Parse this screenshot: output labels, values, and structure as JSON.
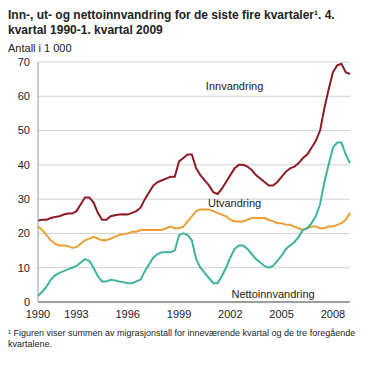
{
  "chart_data": {
    "type": "line",
    "title": "Inn-, ut- og nettoinnvandring for de siste fire kvartaler¹. 4. kvartal 1990-1. kvartal 2009",
    "y_label": "Antall i 1 000",
    "footnote": "¹ Figuren viser summen av migrasjonstall for inneværende kvartal og de tre foregående kvartalene.",
    "categories": [
      "1990",
      null,
      null,
      null,
      null,
      null,
      null,
      null,
      null,
      "1993",
      null,
      null,
      null,
      null,
      null,
      null,
      null,
      null,
      null,
      null,
      null,
      "1996",
      null,
      null,
      null,
      null,
      null,
      null,
      null,
      null,
      null,
      null,
      null,
      "1999",
      null,
      null,
      null,
      null,
      null,
      null,
      null,
      null,
      null,
      null,
      null,
      "2002",
      null,
      null,
      null,
      null,
      null,
      null,
      null,
      null,
      null,
      null,
      null,
      "2005",
      null,
      null,
      null,
      null,
      null,
      null,
      null,
      null,
      null,
      null,
      null,
      "2008",
      null,
      null,
      null,
      null
    ],
    "series": [
      {
        "name": "Innvandring",
        "color": "#8b1c24",
        "values": [
          23.8,
          24,
          24,
          24.5,
          24.8,
          25,
          25.5,
          25.8,
          25.8,
          26.5,
          28.5,
          30.5,
          30.5,
          29,
          26,
          24,
          24,
          25,
          25.3,
          25.5,
          25.6,
          25.5,
          26,
          26.5,
          27.5,
          30,
          32,
          34,
          35,
          35.5,
          36,
          36.5,
          36.5,
          41,
          42,
          43,
          43,
          39,
          37,
          35.5,
          34,
          32,
          31.5,
          33,
          35,
          37,
          39,
          40,
          40,
          39.5,
          38.5,
          37,
          36,
          35,
          34,
          34,
          35,
          36.5,
          38,
          39,
          39.5,
          40.5,
          42,
          43,
          45,
          47,
          50,
          56.5,
          62,
          67,
          69,
          69.5,
          67,
          66.5
        ]
      },
      {
        "name": "Utvandring",
        "color": "#e8a033",
        "values": [
          22,
          21,
          19.5,
          18,
          17,
          16.5,
          16.5,
          16.3,
          15.8,
          16,
          17,
          18,
          18.5,
          19,
          18.5,
          18,
          18,
          18.5,
          19,
          19.5,
          19.8,
          20,
          20.5,
          20.5,
          21,
          21,
          21,
          21,
          21,
          21,
          21.5,
          22,
          21.5,
          21.5,
          22,
          23.5,
          25,
          26.5,
          27,
          27,
          27,
          26.5,
          26,
          25.5,
          25,
          24,
          23.5,
          23.5,
          23.5,
          24,
          24.5,
          24.5,
          24.5,
          24.5,
          24,
          23.5,
          23,
          23,
          22.5,
          22.5,
          22,
          21.5,
          21,
          21.5,
          22,
          22,
          21.5,
          21.5,
          22,
          22,
          22.5,
          23,
          24,
          26
        ]
      },
      {
        "name": "Nettoinnvandring",
        "color": "#3fb39b",
        "values": [
          1.8,
          3,
          4.5,
          6.5,
          7.8,
          8.5,
          9,
          9.5,
          10,
          10.5,
          11.5,
          12.5,
          12,
          10,
          7.5,
          6,
          6,
          6.5,
          6.3,
          6,
          5.8,
          5.5,
          5.5,
          6,
          6.5,
          9,
          11,
          13,
          14,
          14.5,
          14.5,
          14.5,
          15,
          19.5,
          20,
          19.5,
          18,
          12.5,
          10,
          8.5,
          7,
          5.5,
          5.5,
          7.5,
          10,
          13,
          15.5,
          16.5,
          16.5,
          15.5,
          14,
          12.5,
          11.5,
          10.5,
          10,
          10.5,
          12,
          13.5,
          15.5,
          16.5,
          17.5,
          19,
          21,
          21.5,
          23,
          25,
          28.5,
          35,
          40,
          45,
          46.5,
          46.5,
          43,
          40.5
        ]
      }
    ],
    "ylim": [
      0,
      70
    ],
    "yticks": [
      0,
      10,
      20,
      30,
      40,
      50,
      60,
      70
    ],
    "grid": true
  }
}
